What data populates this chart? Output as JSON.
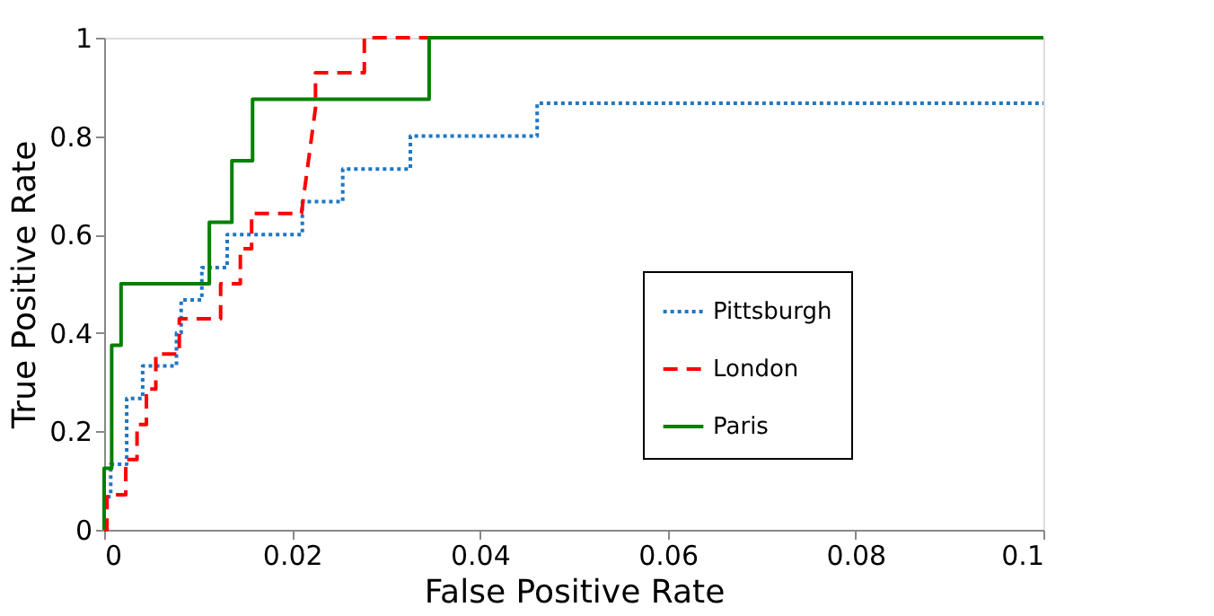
{
  "chart_data": {
    "type": "line",
    "xlabel": "False Positive Rate",
    "ylabel": "True Positive Rate",
    "xlim": [
      0,
      0.1
    ],
    "xticks": [
      0,
      0.02,
      0.04,
      0.06,
      0.08,
      0.1
    ],
    "ylim": [
      0,
      1
    ],
    "yticks": [
      0,
      0.2,
      0.4,
      0.6,
      0.8,
      1
    ],
    "grid": false,
    "legend": "right",
    "marker": "none",
    "series": [
      {
        "name": "Pittsburgh",
        "color": "#1f77c4",
        "line_style": "dotted",
        "x": [
          0,
          0,
          0.0007,
          0.0007,
          0.0024,
          0.0024,
          0.0041,
          0.0041,
          0.0077,
          0.0077,
          0.0082,
          0.0082,
          0.0104,
          0.0104,
          0.0131,
          0.0131,
          0.0211,
          0.0211,
          0.0254,
          0.0254,
          0.0326,
          0.0326,
          0.0461,
          0.0461,
          0.1
        ],
        "values": [
          0,
          0.067,
          0.067,
          0.133,
          0.133,
          0.267,
          0.267,
          0.333,
          0.333,
          0.4,
          0.4,
          0.467,
          0.467,
          0.533,
          0.533,
          0.6,
          0.6,
          0.667,
          0.667,
          0.733,
          0.733,
          0.8,
          0.8,
          0.867,
          0.867
        ]
      },
      {
        "name": "London",
        "color": "#ff0000",
        "line_style": "dashed",
        "x": [
          0,
          0.0003,
          0.0003,
          0.0023,
          0.0023,
          0.0035,
          0.0035,
          0.0045,
          0.0045,
          0.0055,
          0.0055,
          0.008,
          0.008,
          0.0124,
          0.0124,
          0.0145,
          0.0145,
          0.0157,
          0.0157,
          0.021,
          0.0225,
          0.0225,
          0.0277,
          0.0277,
          0.0346
        ],
        "values": [
          0,
          0,
          0.071,
          0.071,
          0.143,
          0.143,
          0.214,
          0.214,
          0.286,
          0.286,
          0.357,
          0.357,
          0.429,
          0.429,
          0.5,
          0.5,
          0.571,
          0.571,
          0.643,
          0.643,
          0.857,
          0.929,
          0.929,
          1,
          1
        ]
      },
      {
        "name": "Paris",
        "color": "#008000",
        "line_style": "solid",
        "x": [
          0,
          0,
          0.0008,
          0.0008,
          0.0018,
          0.0018,
          0.0112,
          0.0112,
          0.0136,
          0.0136,
          0.0158,
          0.0158,
          0.0346,
          0.0346,
          0.1
        ],
        "values": [
          0,
          0.125,
          0.125,
          0.375,
          0.375,
          0.5,
          0.5,
          0.625,
          0.625,
          0.75,
          0.75,
          0.875,
          0.875,
          1,
          1
        ]
      }
    ]
  }
}
